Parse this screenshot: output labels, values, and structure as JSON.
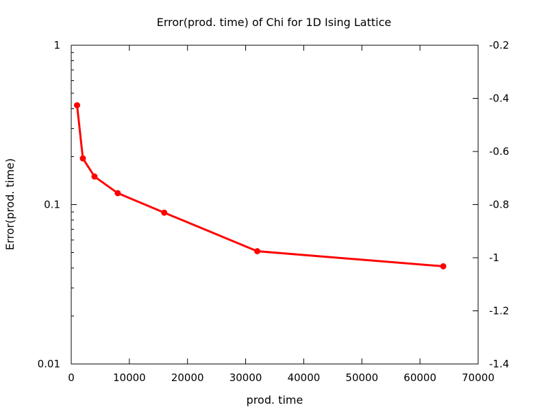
{
  "chart_data": {
    "type": "line",
    "title": "Error(prod. time) of Chi for 1D Ising Lattice",
    "xlabel": "prod. time",
    "ylabel": "Error(prod. time)",
    "xlim": [
      0,
      70000
    ],
    "ylim": [
      0.01,
      1
    ],
    "yscale": "log",
    "y2lim": [
      -1.4,
      -0.2
    ],
    "grid": false,
    "legend": "none",
    "x_ticks": [
      0,
      10000,
      20000,
      30000,
      40000,
      50000,
      60000,
      70000
    ],
    "x_tick_labels": [
      "0",
      "10000",
      "20000",
      "30000",
      "40000",
      "50000",
      "60000",
      "70000"
    ],
    "y_ticks": [
      0.01,
      0.1,
      1
    ],
    "y_tick_labels": [
      "0.01",
      "0.1",
      "1"
    ],
    "y2_ticks": [
      -1.4,
      -1.2,
      -1.0,
      -0.8,
      -0.6,
      -0.4,
      -0.2
    ],
    "y2_tick_labels": [
      "-1.4",
      "-1.2",
      "-1",
      "-0.8",
      "-0.6",
      "-0.4",
      "-0.2"
    ],
    "series": [
      {
        "x": [
          1000,
          2000,
          4000,
          8000,
          16000,
          32000,
          64000
        ],
        "y": [
          0.42,
          0.195,
          0.15,
          0.118,
          0.089,
          0.051,
          0.041
        ]
      }
    ],
    "colors": {
      "line": "#ff0000",
      "marker": "#ff0000",
      "axis": "#000000"
    }
  }
}
